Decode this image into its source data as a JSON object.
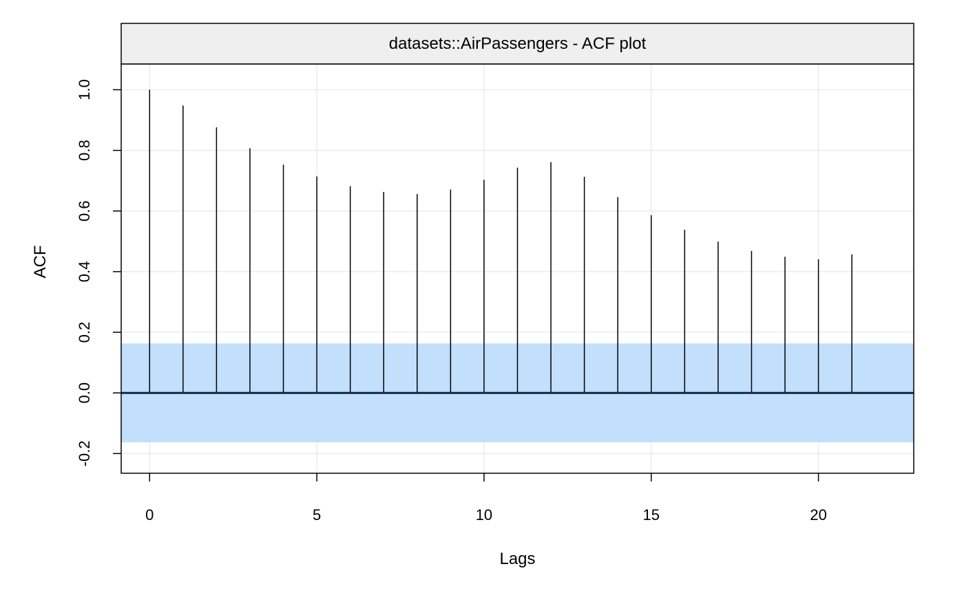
{
  "chart_data": {
    "type": "bar",
    "title": "datasets::AirPassengers - ACF plot",
    "xlabel": "Lags",
    "ylabel": "ACF",
    "xlim": [
      -0.85,
      22.85
    ],
    "ylim": [
      -0.265,
      1.085
    ],
    "x_ticks": [
      0,
      5,
      10,
      15,
      20
    ],
    "y_ticks": [
      -0.2,
      0.0,
      0.2,
      0.4,
      0.6,
      0.8,
      1.0
    ],
    "y_tick_labels": [
      "-0.2",
      "0.0",
      "0.2",
      "0.4",
      "0.6",
      "0.8",
      "1.0"
    ],
    "grid": true,
    "confidence_band": [
      -0.163,
      0.163
    ],
    "colors": {
      "band": "#c2dffb",
      "stem": "#000000",
      "zero_line": "#0b2a45",
      "grid": "#ebebeb",
      "strip_bg": "#efefef"
    },
    "lags": [
      0,
      1,
      2,
      3,
      4,
      5,
      6,
      7,
      8,
      9,
      10,
      11,
      12,
      13,
      14,
      15,
      16,
      17,
      18,
      19,
      20,
      21
    ],
    "values": [
      1.0,
      0.948,
      0.876,
      0.807,
      0.753,
      0.714,
      0.682,
      0.663,
      0.656,
      0.671,
      0.703,
      0.743,
      0.761,
      0.713,
      0.646,
      0.586,
      0.538,
      0.499,
      0.468,
      0.449,
      0.441,
      0.457
    ]
  }
}
